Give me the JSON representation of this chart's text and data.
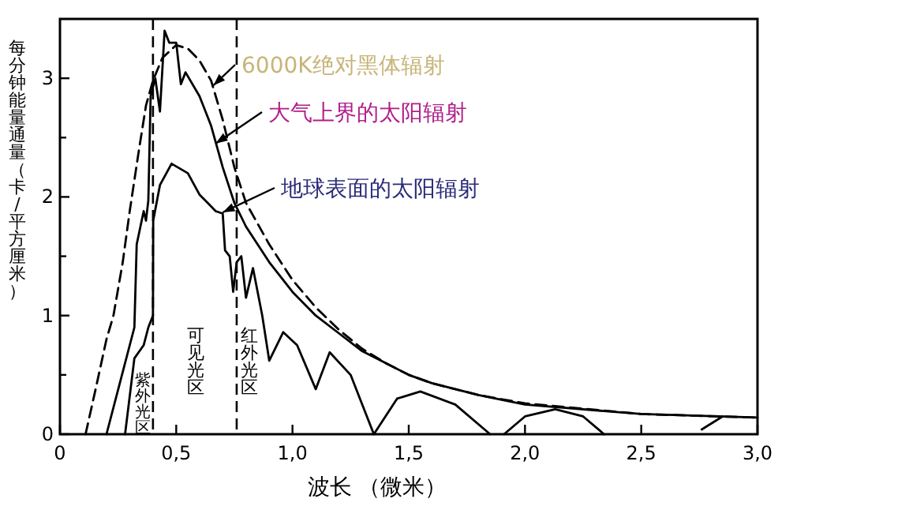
{
  "chart_data": {
    "type": "line",
    "xlabel": "波长 （微米）",
    "ylabel": "每分钟能量通量（卡/平方厘米）",
    "xlim": [
      0,
      3.0
    ],
    "ylim": [
      0,
      3.5
    ],
    "xticks": [
      0,
      {
        "value": 0.5,
        "label": "0,5"
      },
      {
        "value": 1.0,
        "label": "1,0"
      },
      {
        "value": 1.5,
        "label": "1,5"
      },
      {
        "value": 2.0,
        "label": "2,0"
      },
      {
        "value": 2.5,
        "label": "2,5"
      },
      {
        "value": 3.0,
        "label": "3,0"
      }
    ],
    "yticks": [
      0,
      {
        "value": 0.5,
        "label": null
      },
      1,
      {
        "value": 1.5,
        "label": null
      },
      2,
      {
        "value": 2.5,
        "label": null
      },
      3
    ],
    "series": [
      {
        "color": "#000000",
        "line_style": "dashed",
        "x": [
          0.11,
          0.15,
          0.2,
          0.23,
          0.27,
          0.3,
          0.34,
          0.37,
          0.4,
          0.44,
          0.5,
          0.55,
          0.6,
          0.65,
          0.7,
          0.75,
          0.8,
          0.9,
          1.0,
          1.1,
          1.2,
          1.3,
          1.4,
          1.5,
          1.6,
          1.8,
          2.0,
          2.5,
          3.0
        ],
        "values": [
          0,
          0.35,
          0.8,
          1.0,
          1.45,
          1.88,
          2.4,
          2.77,
          2.98,
          3.17,
          3.28,
          3.25,
          3.15,
          2.98,
          2.65,
          2.25,
          1.95,
          1.6,
          1.3,
          1.07,
          0.88,
          0.72,
          0.6,
          0.5,
          0.43,
          0.33,
          0.26,
          0.17,
          0.14
        ]
      },
      {
        "color": "#000000",
        "line_style": "solid",
        "x": [
          0.2,
          0.26,
          0.32,
          0.33,
          0.36,
          0.37,
          0.38,
          0.39,
          0.41,
          0.43,
          0.45,
          0.47,
          0.5,
          0.52,
          0.54,
          0.6,
          0.65,
          0.7,
          0.75,
          0.8,
          0.9,
          1.0,
          1.1,
          1.2,
          1.3,
          1.4,
          1.5,
          1.6,
          1.8,
          2.0,
          2.5,
          3.0
        ],
        "values": [
          0,
          0.45,
          0.9,
          1.6,
          1.88,
          1.8,
          1.97,
          2.85,
          3.0,
          2.72,
          3.4,
          3.3,
          3.3,
          2.95,
          3.05,
          2.85,
          2.6,
          2.25,
          1.95,
          1.75,
          1.45,
          1.2,
          1.0,
          0.85,
          0.7,
          0.6,
          0.5,
          0.43,
          0.33,
          0.25,
          0.17,
          0.14
        ]
      },
      {
        "color": "#000000",
        "line_style": "solid",
        "x": [
          0.28,
          0.32,
          0.36,
          0.38,
          0.4,
          0.401,
          0.43,
          0.48,
          0.55,
          0.6,
          0.67,
          0.7,
          0.71,
          0.73,
          0.745,
          0.76,
          0.78,
          0.8,
          0.83,
          0.87,
          0.9,
          0.96,
          1.02,
          1.1,
          1.16,
          1.25,
          1.35,
          1.45,
          1.55,
          1.7,
          1.85,
          null,
          1.91,
          2.0,
          2.13,
          2.25,
          2.34,
          null,
          2.76,
          2.85
        ],
        "values": [
          0,
          0.64,
          0.75,
          0.9,
          1.0,
          1.8,
          2.1,
          2.28,
          2.2,
          2.02,
          1.88,
          1.86,
          1.55,
          1.5,
          1.2,
          1.45,
          1.5,
          1.15,
          1.4,
          1.0,
          0.62,
          0.86,
          0.75,
          0.38,
          0.69,
          0.5,
          0,
          0.3,
          0.36,
          0.25,
          0,
          null,
          0,
          0.15,
          0.21,
          0.15,
          0,
          null,
          0.04,
          0.15
        ]
      }
    ],
    "ref_lines": [
      {
        "axis": "x",
        "value": 0.4,
        "line_style": "dashed"
      },
      {
        "axis": "x",
        "value": 0.76,
        "line_style": "dashed"
      }
    ],
    "annotations": [
      {
        "text": "6000K绝对黑体辐射",
        "x": 0.66,
        "y": 2.94
      },
      {
        "text": "大气上界的太阳辐射",
        "x": 0.67,
        "y": 2.45
      },
      {
        "text": "地球表面的太阳辐射",
        "x": 0.7,
        "y": 1.87
      },
      "紫外光区",
      "可见光区",
      "红外光区"
    ]
  }
}
